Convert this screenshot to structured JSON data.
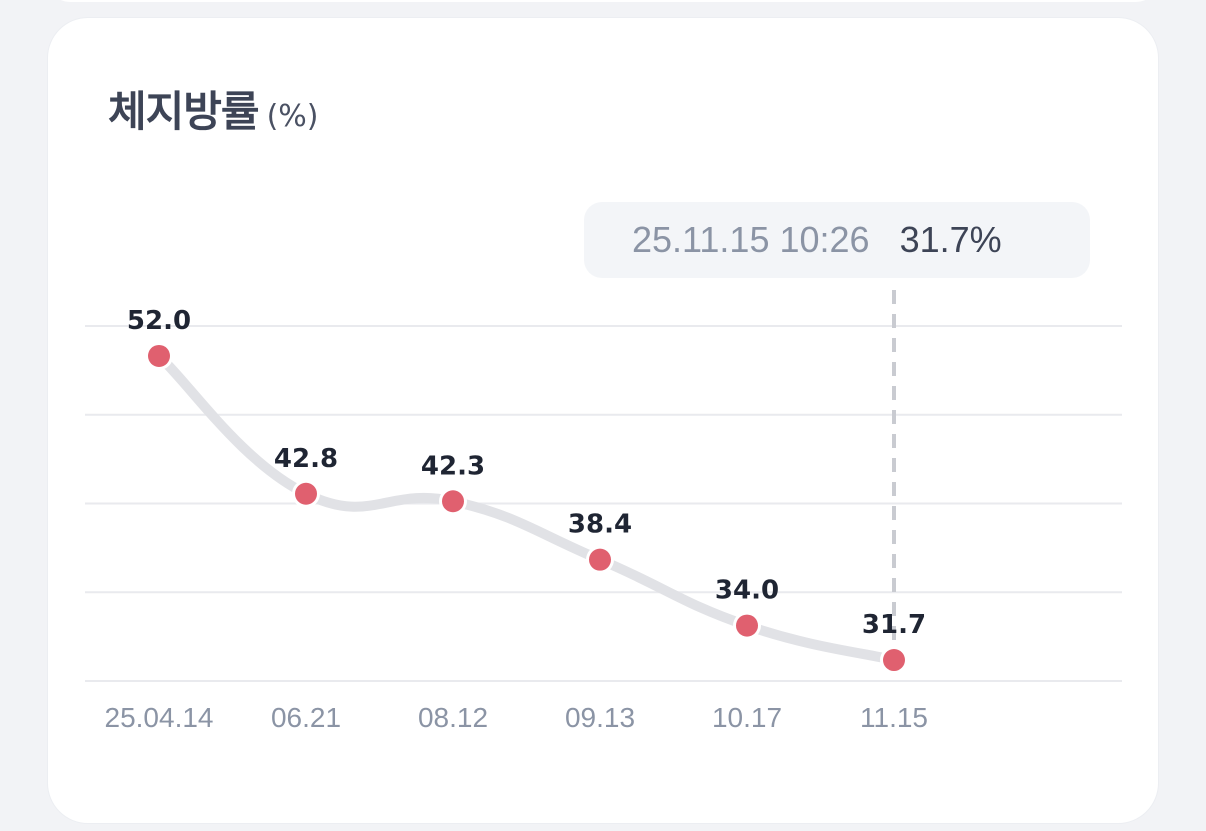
{
  "card": {
    "title": "체지방률",
    "unit": "(%)"
  },
  "tooltip": {
    "datetime": "25.11.15 10:26",
    "value": "31.7%"
  },
  "colors": {
    "line": "#e1e2e6",
    "point": "#e0606f",
    "grid": "#e9eaee",
    "label": "#1f2533",
    "tick": "#8b94a5",
    "guide": "#c9cbd1"
  },
  "chart_data": {
    "type": "line",
    "title": "체지방률",
    "unit": "%",
    "categories": [
      "25.04.14",
      "06.21",
      "08.12",
      "09.13",
      "10.17",
      "11.15"
    ],
    "series": [
      {
        "values": [
          52.0,
          42.8,
          42.3,
          38.4,
          34.0,
          31.7
        ],
        "labels": [
          "52.0",
          "42.8",
          "42.3",
          "38.4",
          "34.0",
          "31.7"
        ]
      }
    ],
    "ylim": [
      30.3,
      54.0
    ],
    "grid": true,
    "selected_index": 5
  }
}
